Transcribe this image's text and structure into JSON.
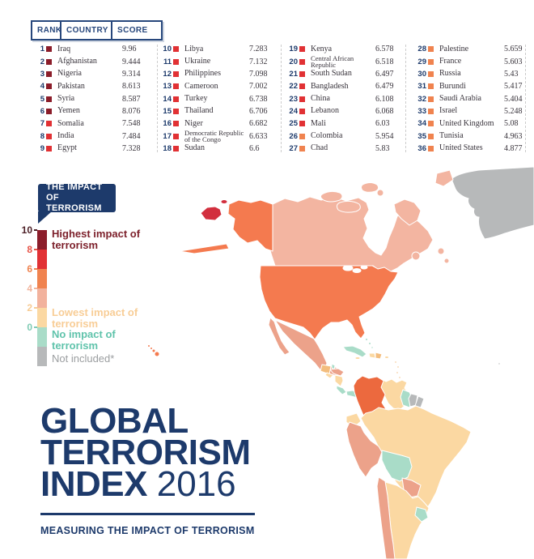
{
  "colors": {
    "navy": "#1d3a6b",
    "header_navy": "#27477c",
    "text_dark": "#38333b",
    "maroon": "#8b1d2a",
    "red": "#e13134",
    "orange": "#f0834f",
    "salmon": "#f2b29d",
    "cream": "#fbd8a2",
    "teal": "#a9dcc8",
    "gray": "#b7b9ba",
    "map_red": "#d22f3e",
    "map_orange": "#f47a4f",
    "map_orange_deep": "#ec693e",
    "map_salmon": "#eca28a",
    "map_salmon_light": "#f3b5a1",
    "gold": "#f3bd7e",
    "white": "#ffffff",
    "label_highest": "#7c1f2a",
    "label_lowest": "#f8cd96",
    "label_none": "#5fc3ab",
    "label_notinc": "#9b9ea0"
  },
  "table_header": [
    "RANK",
    "COUNTRY",
    "SCORE"
  ],
  "ranking": {
    "columns": [
      {
        "entries": [
          {
            "rank": "1",
            "country": "Iraq",
            "score": "9.96",
            "band": "maroon"
          },
          {
            "rank": "2",
            "country": "Afghanistan",
            "score": "9.444",
            "band": "maroon"
          },
          {
            "rank": "3",
            "country": "Nigeria",
            "score": "9.314",
            "band": "maroon"
          },
          {
            "rank": "4",
            "country": "Pakistan",
            "score": "8.613",
            "band": "maroon"
          },
          {
            "rank": "5",
            "country": "Syria",
            "score": "8.587",
            "band": "maroon"
          },
          {
            "rank": "6",
            "country": "Yemen",
            "score": "8.076",
            "band": "maroon"
          },
          {
            "rank": "7",
            "country": "Somalia",
            "score": "7.548",
            "band": "red"
          },
          {
            "rank": "8",
            "country": "India",
            "score": "7.484",
            "band": "red"
          },
          {
            "rank": "9",
            "country": "Egypt",
            "score": "7.328",
            "band": "red"
          }
        ]
      },
      {
        "entries": [
          {
            "rank": "10",
            "country": "Libya",
            "score": "7.283",
            "band": "red"
          },
          {
            "rank": "11",
            "country": "Ukraine",
            "score": "7.132",
            "band": "red"
          },
          {
            "rank": "12",
            "country": "Philippines",
            "score": "7.098",
            "band": "red"
          },
          {
            "rank": "13",
            "country": "Cameroon",
            "score": "7.002",
            "band": "red"
          },
          {
            "rank": "14",
            "country": "Turkey",
            "score": "6.738",
            "band": "red"
          },
          {
            "rank": "15",
            "country": "Thailand",
            "score": "6.706",
            "band": "red"
          },
          {
            "rank": "16",
            "country": "Niger",
            "score": "6.682",
            "band": "red"
          },
          {
            "rank": "17",
            "country": "Democratic Republic of the Congo",
            "score": "6.633",
            "band": "red"
          },
          {
            "rank": "18",
            "country": "Sudan",
            "score": "6.6",
            "band": "red"
          }
        ]
      },
      {
        "entries": [
          {
            "rank": "19",
            "country": "Kenya",
            "score": "6.578",
            "band": "red"
          },
          {
            "rank": "20",
            "country": "Central African Republic",
            "score": "6.518",
            "band": "red"
          },
          {
            "rank": "21",
            "country": "South Sudan",
            "score": "6.497",
            "band": "red"
          },
          {
            "rank": "22",
            "country": "Bangladesh",
            "score": "6.479",
            "band": "red"
          },
          {
            "rank": "23",
            "country": "China",
            "score": "6.108",
            "band": "red"
          },
          {
            "rank": "24",
            "country": "Lebanon",
            "score": "6.068",
            "band": "red"
          },
          {
            "rank": "25",
            "country": "Mali",
            "score": "6.03",
            "band": "red"
          },
          {
            "rank": "26",
            "country": "Colombia",
            "score": "5.954",
            "band": "orange"
          },
          {
            "rank": "27",
            "country": "Chad",
            "score": "5.83",
            "band": "orange"
          }
        ]
      },
      {
        "entries": [
          {
            "rank": "28",
            "country": "Palestine",
            "score": "5.659",
            "band": "orange"
          },
          {
            "rank": "29",
            "country": "France",
            "score": "5.603",
            "band": "orange"
          },
          {
            "rank": "30",
            "country": "Russia",
            "score": "5.43",
            "band": "orange"
          },
          {
            "rank": "31",
            "country": "Burundi",
            "score": "5.417",
            "band": "orange"
          },
          {
            "rank": "32",
            "country": "Saudi Arabia",
            "score": "5.404",
            "band": "orange"
          },
          {
            "rank": "33",
            "country": "Israel",
            "score": "5.248",
            "band": "orange"
          },
          {
            "rank": "34",
            "country": "United Kingdom",
            "score": "5.08",
            "band": "orange"
          },
          {
            "rank": "35",
            "country": "Tunisia",
            "score": "4.963",
            "band": "orange"
          },
          {
            "rank": "36",
            "country": "United States",
            "score": "4.877",
            "band": "orange"
          }
        ]
      }
    ]
  },
  "legend": {
    "bubble_line1": "THE IMPACT",
    "bubble_line2": "OF TERRORISM",
    "bands": [
      {
        "tick": "10",
        "color": "maroon",
        "tick_color": "#4e2128"
      },
      {
        "tick": "8",
        "color": "red",
        "tick_color": "#e8564a"
      },
      {
        "tick": "6",
        "color": "orange",
        "tick_color": "#ef8350"
      },
      {
        "tick": "4",
        "color": "salmon",
        "tick_color": "#f2b49c"
      },
      {
        "tick": "2",
        "color": "cream",
        "tick_color": "#f7cc95"
      },
      {
        "tick": "0",
        "color": "teal",
        "tick_color": "#7fcbb4"
      },
      {
        "tick": "",
        "color": "gray",
        "tick_color": ""
      }
    ],
    "labels": {
      "highest": "Highest impact of terrorism",
      "lowest": "Lowest impact of terrorism",
      "none": "No impact of terrorism",
      "not_included": "Not included*"
    }
  },
  "title": {
    "line1": "GLOBAL",
    "line2": "TERRORISM",
    "line3_bold": "INDEX",
    "line3_light": "2016",
    "subtitle": "MEASURING THE IMPACT OF TERRORISM"
  }
}
